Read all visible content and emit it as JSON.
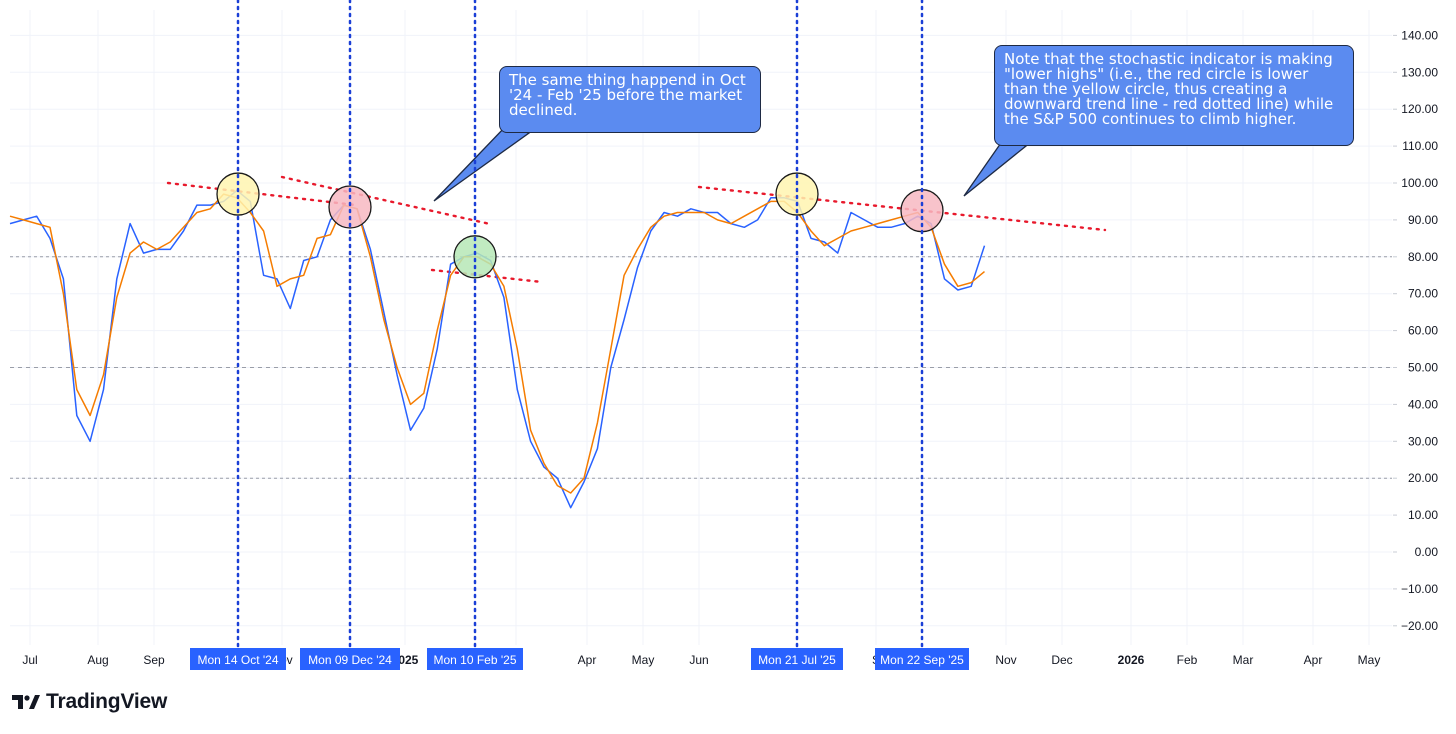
{
  "chart_data": {
    "type": "line",
    "title": "",
    "ylim": [
      -25,
      147
    ],
    "y_ticks": [
      140,
      130,
      120,
      110,
      100,
      90,
      80,
      70,
      60,
      50,
      40,
      30,
      20,
      10,
      0,
      -10,
      -20
    ],
    "reference_lines": [
      80,
      50,
      20
    ],
    "x_tick_labels": [
      "Jul",
      "Aug",
      "Sep",
      "Nov",
      "2025",
      "r",
      "Apr",
      "May",
      "Jun",
      "S",
      "Nov",
      "Dec",
      "2026",
      "Feb",
      "Mar",
      "Apr",
      "May"
    ],
    "x_tick_bold": [
      "2025",
      "2026"
    ],
    "marker_labels": [
      "Mon 14 Oct '24",
      "Mon 09 Dec '24",
      "Mon 10 Feb '25",
      "Mon 21 Jul '25",
      "Mon 22 Sep '25"
    ],
    "series": [
      {
        "color": "#2962ff",
        "values": [
          89,
          90,
          91,
          85,
          74,
          37,
          30,
          44,
          74,
          89,
          81,
          82,
          82,
          87,
          94,
          94,
          95,
          98,
          95,
          75,
          74,
          66,
          79,
          80,
          90,
          94,
          93,
          82,
          65,
          48,
          33,
          39,
          55,
          78,
          80,
          81,
          79,
          69,
          44,
          30,
          23,
          20,
          12,
          19,
          28,
          50,
          63,
          77,
          87,
          92,
          91,
          93,
          92,
          92,
          89,
          88,
          90,
          96,
          96,
          95,
          85,
          84,
          81,
          92,
          90,
          88,
          88,
          89,
          91,
          89,
          74,
          71,
          72,
          83
        ]
      },
      {
        "color": "#f57c00",
        "values": [
          91,
          90,
          89,
          88,
          70,
          44,
          37,
          48,
          69,
          81,
          84,
          82,
          84,
          88,
          92,
          93,
          97,
          96,
          92,
          87,
          72,
          74,
          75,
          85,
          86,
          94,
          93,
          80,
          63,
          50,
          40,
          43,
          60,
          75,
          80,
          80,
          78,
          72,
          55,
          33,
          24,
          18,
          16,
          20,
          35,
          55,
          75,
          82,
          88,
          91,
          92,
          92,
          92,
          90,
          89,
          91,
          93,
          95,
          95,
          92,
          87,
          83,
          85,
          87,
          88,
          89,
          90,
          91,
          92,
          88,
          78,
          72,
          73,
          76
        ]
      }
    ],
    "circles": [
      {
        "label": "yellow",
        "color": "#fff5b0",
        "value": 97
      },
      {
        "label": "red",
        "color": "#f7b9c2",
        "value": 93.5
      },
      {
        "label": "green",
        "color": "#b6e8b6",
        "value": 80
      },
      {
        "label": "yellow",
        "color": "#fff5b0",
        "value": 97
      },
      {
        "label": "red",
        "color": "#f7b9c2",
        "value": 92.5
      }
    ],
    "accent_colors": {
      "marker_line": "#1a3fd6",
      "marker_label_bg": "#2962ff",
      "trend_line": "#e8192c",
      "grid": "#f0f3fa",
      "ref_line": "#9a9ea8"
    }
  },
  "annotations": {
    "callout_1": "The same thing happend in Oct '24 - Feb '25 before the market declined.",
    "callout_2": "Note that the stochastic indicator is making \"lower highs\" (i.e., the red circle is lower than the yellow circle, thus creating a downward trend line - red dotted line) while the S&P 500 continues to climb higher."
  },
  "footer": {
    "brand": "TradingView"
  }
}
